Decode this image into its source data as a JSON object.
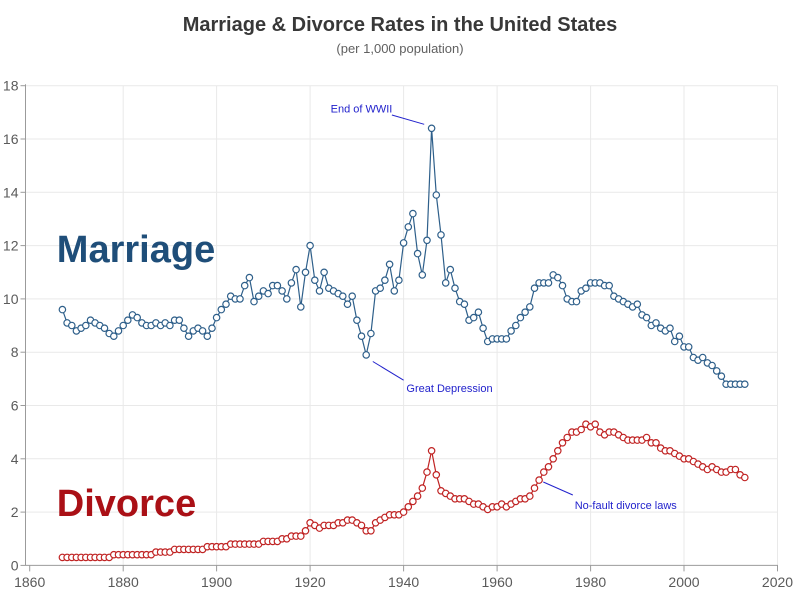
{
  "title": "Marriage & Divorce Rates in the United States",
  "subtitle": "(per 1,000 population)",
  "colors": {
    "grid": "#e9e9e9",
    "axis": "#9b9b9b",
    "tick_text": "#5a5a5a",
    "title_text": "#383838",
    "subtitle_text": "#606060",
    "annotation": "#2222cc",
    "marriage_line": "#2e5f8a",
    "marriage_label": "#1f4e79",
    "divorce_line": "#c02323",
    "divorce_label": "#aa1016",
    "background": "#ffffff"
  },
  "chart_data": {
    "type": "line",
    "title": "Marriage & Divorce Rates in the United States",
    "subtitle": "(per 1,000 population)",
    "xlabel": "",
    "ylabel": "",
    "xlim": [
      1860,
      2020
    ],
    "ylim": [
      0,
      18
    ],
    "x_ticks": [
      1860,
      1880,
      1900,
      1920,
      1940,
      1960,
      1980,
      2000,
      2020
    ],
    "y_ticks": [
      0,
      2,
      4,
      6,
      8,
      10,
      12,
      14,
      16,
      18
    ],
    "grid": true,
    "legend_position": "none",
    "marker": "open-circle",
    "years": [
      1867,
      1868,
      1869,
      1870,
      1871,
      1872,
      1873,
      1874,
      1875,
      1876,
      1877,
      1878,
      1879,
      1880,
      1881,
      1882,
      1883,
      1884,
      1885,
      1886,
      1887,
      1888,
      1889,
      1890,
      1891,
      1892,
      1893,
      1894,
      1895,
      1896,
      1897,
      1898,
      1899,
      1900,
      1901,
      1902,
      1903,
      1904,
      1905,
      1906,
      1907,
      1908,
      1909,
      1910,
      1911,
      1912,
      1913,
      1914,
      1915,
      1916,
      1917,
      1918,
      1919,
      1920,
      1921,
      1922,
      1923,
      1924,
      1925,
      1926,
      1927,
      1928,
      1929,
      1930,
      1931,
      1932,
      1933,
      1934,
      1935,
      1936,
      1937,
      1938,
      1939,
      1940,
      1941,
      1942,
      1943,
      1944,
      1945,
      1946,
      1947,
      1948,
      1949,
      1950,
      1951,
      1952,
      1953,
      1954,
      1955,
      1956,
      1957,
      1958,
      1959,
      1960,
      1961,
      1962,
      1963,
      1964,
      1965,
      1966,
      1967,
      1968,
      1969,
      1970,
      1971,
      1972,
      1973,
      1974,
      1975,
      1976,
      1977,
      1978,
      1979,
      1980,
      1981,
      1982,
      1983,
      1984,
      1985,
      1986,
      1987,
      1988,
      1989,
      1990,
      1991,
      1992,
      1993,
      1994,
      1995,
      1996,
      1997,
      1998,
      1999,
      2000,
      2001,
      2002,
      2003,
      2004,
      2005,
      2006,
      2007,
      2008,
      2009,
      2010,
      2011,
      2012,
      2013
    ],
    "series": [
      {
        "name": "Marriage",
        "label": "Marriage",
        "color": "#2e5f8a",
        "label_color": "#1f4e79",
        "label_pos": {
          "year": 1865.8,
          "value": 11.38
        },
        "values": [
          9.6,
          9.1,
          9.0,
          8.8,
          8.9,
          9.0,
          9.2,
          9.1,
          9.0,
          8.9,
          8.7,
          8.6,
          8.8,
          9.0,
          9.2,
          9.4,
          9.3,
          9.1,
          9.0,
          9.0,
          9.1,
          9.0,
          9.1,
          9.0,
          9.2,
          9.2,
          8.9,
          8.6,
          8.8,
          8.9,
          8.8,
          8.6,
          8.9,
          9.3,
          9.6,
          9.8,
          10.1,
          10.0,
          10.0,
          10.5,
          10.8,
          9.9,
          10.1,
          10.3,
          10.2,
          10.5,
          10.5,
          10.3,
          10.0,
          10.6,
          11.1,
          9.7,
          11.0,
          12.0,
          10.7,
          10.3,
          11.0,
          10.4,
          10.3,
          10.2,
          10.1,
          9.8,
          10.1,
          9.2,
          8.6,
          7.9,
          8.7,
          10.3,
          10.4,
          10.7,
          11.3,
          10.3,
          10.7,
          12.1,
          12.7,
          13.2,
          11.7,
          10.9,
          12.2,
          16.4,
          13.9,
          12.4,
          10.6,
          11.1,
          10.4,
          9.9,
          9.8,
          9.2,
          9.3,
          9.5,
          8.9,
          8.4,
          8.5,
          8.5,
          8.5,
          8.5,
          8.8,
          9.0,
          9.3,
          9.5,
          9.7,
          10.4,
          10.6,
          10.6,
          10.6,
          10.9,
          10.8,
          10.5,
          10.0,
          9.9,
          9.9,
          10.3,
          10.4,
          10.6,
          10.6,
          10.6,
          10.5,
          10.5,
          10.1,
          10.0,
          9.9,
          9.8,
          9.7,
          9.8,
          9.4,
          9.3,
          9.0,
          9.1,
          8.9,
          8.8,
          8.9,
          8.4,
          8.6,
          8.2,
          8.2,
          7.8,
          7.7,
          7.8,
          7.6,
          7.5,
          7.3,
          7.1,
          6.8,
          6.8,
          6.8,
          6.8,
          6.8
        ]
      },
      {
        "name": "Divorce",
        "label": "Divorce",
        "color": "#c02323",
        "label_color": "#aa1016",
        "label_pos": {
          "year": 1865.8,
          "value": 1.85
        },
        "values": [
          0.3,
          0.3,
          0.3,
          0.3,
          0.3,
          0.3,
          0.3,
          0.3,
          0.3,
          0.3,
          0.3,
          0.4,
          0.4,
          0.4,
          0.4,
          0.4,
          0.4,
          0.4,
          0.4,
          0.4,
          0.5,
          0.5,
          0.5,
          0.5,
          0.6,
          0.6,
          0.6,
          0.6,
          0.6,
          0.6,
          0.6,
          0.7,
          0.7,
          0.7,
          0.7,
          0.7,
          0.8,
          0.8,
          0.8,
          0.8,
          0.8,
          0.8,
          0.8,
          0.9,
          0.9,
          0.9,
          0.9,
          1.0,
          1.0,
          1.1,
          1.1,
          1.1,
          1.3,
          1.6,
          1.5,
          1.4,
          1.5,
          1.5,
          1.5,
          1.6,
          1.6,
          1.7,
          1.7,
          1.6,
          1.5,
          1.3,
          1.3,
          1.6,
          1.7,
          1.8,
          1.9,
          1.9,
          1.9,
          2.0,
          2.2,
          2.4,
          2.6,
          2.9,
          3.5,
          4.3,
          3.4,
          2.8,
          2.7,
          2.6,
          2.5,
          2.5,
          2.5,
          2.4,
          2.3,
          2.3,
          2.2,
          2.1,
          2.2,
          2.2,
          2.3,
          2.2,
          2.3,
          2.4,
          2.5,
          2.5,
          2.6,
          2.9,
          3.2,
          3.5,
          3.7,
          4.0,
          4.3,
          4.6,
          4.8,
          5.0,
          5.0,
          5.1,
          5.3,
          5.2,
          5.3,
          5.0,
          4.9,
          5.0,
          5.0,
          4.9,
          4.8,
          4.7,
          4.7,
          4.7,
          4.7,
          4.8,
          4.6,
          4.6,
          4.4,
          4.3,
          4.3,
          4.2,
          4.1,
          4.0,
          4.0,
          3.9,
          3.8,
          3.7,
          3.6,
          3.7,
          3.6,
          3.5,
          3.5,
          3.6,
          3.6,
          3.4,
          3.3
        ]
      }
    ],
    "annotations": [
      {
        "id": "end-of-wwii",
        "text": "End of WWII",
        "anchor": "middle",
        "points_to": {
          "series": "Marriage",
          "year": 1946,
          "value": 16.4
        },
        "text_pos": {
          "year": 1931.0,
          "value": 17.0
        },
        "leader": {
          "from": {
            "year": 1937.5,
            "value": 16.9
          },
          "to": {
            "year": 1944.4,
            "value": 16.55
          }
        }
      },
      {
        "id": "great-depression",
        "text": "Great Depression",
        "anchor": "start",
        "points_to": {
          "series": "Marriage",
          "year": 1932,
          "value": 7.9
        },
        "text_pos": {
          "year": 1940.6,
          "value": 6.5
        },
        "leader": {
          "from": {
            "year": 1933.4,
            "value": 7.65
          },
          "to": {
            "year": 1940.0,
            "value": 6.95
          }
        }
      },
      {
        "id": "no-fault-divorce-laws",
        "text": "No-fault divorce laws",
        "anchor": "start",
        "points_to": {
          "series": "Divorce",
          "year": 1970,
          "value": 3.5
        },
        "text_pos": {
          "year": 1976.6,
          "value": 2.12
        },
        "leader": {
          "from": {
            "year": 1969.9,
            "value": 3.13
          },
          "to": {
            "year": 1976.2,
            "value": 2.64
          }
        }
      }
    ]
  }
}
